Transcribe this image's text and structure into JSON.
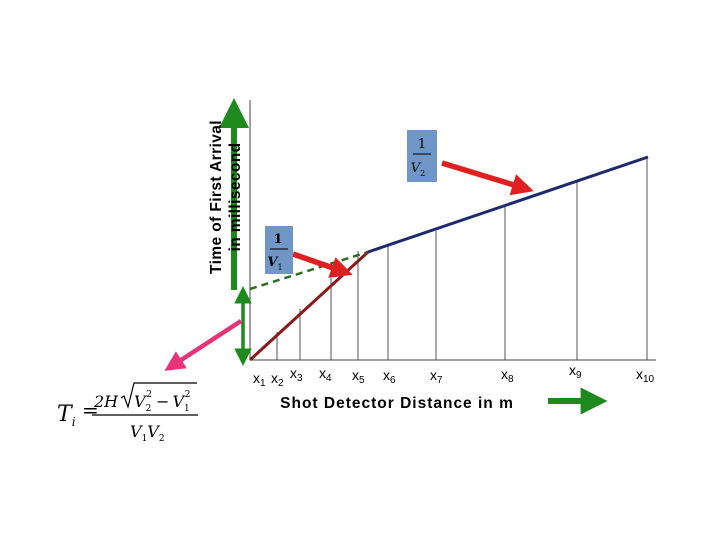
{
  "y_axis_label": {
    "line1": "Time of First Arrival",
    "line2": "in millisecond"
  },
  "x_axis_label": "Shot Detector Distance in m",
  "slope_labels": {
    "upper": {
      "numerator": "1",
      "letter": "V",
      "subscript": "2"
    },
    "lower": {
      "numerator": "1",
      "letter": "V",
      "subscript": "1"
    }
  },
  "ticks": [
    {
      "base": "x",
      "sub": "1"
    },
    {
      "base": "x",
      "sub": "2"
    },
    {
      "base": "x",
      "sub": "3"
    },
    {
      "base": "x",
      "sub": "4"
    },
    {
      "base": "x",
      "sub": "5"
    },
    {
      "base": "x",
      "sub": "6"
    },
    {
      "base": "x",
      "sub": "7"
    },
    {
      "base": "x",
      "sub": "8"
    },
    {
      "base": "x",
      "sub": "9"
    },
    {
      "base": "x",
      "sub": "10"
    }
  ],
  "formula": {
    "lhs": "T",
    "lhs_sub": "i",
    "equals": "=",
    "coef": "2H",
    "v2": "V",
    "v2_sub": "2",
    "v2_sup": "2",
    "minus": "−",
    "v1": "V",
    "v1_sub": "1",
    "v1_sup": "2",
    "den_a": "V",
    "den_a_sub": "1",
    "den_b": "V",
    "den_b_sub": "2"
  },
  "colors": {
    "axis": "#444444",
    "direct_wave": "#8b1a1a",
    "refracted_wave": "#1f2a6e",
    "extrapolation": "#2e6e1e",
    "green_arrow": "#1e8a1e",
    "red_arrow": "#e02020",
    "pink_arrow": "#e8337a",
    "slope_box": "#6f96c6"
  }
}
